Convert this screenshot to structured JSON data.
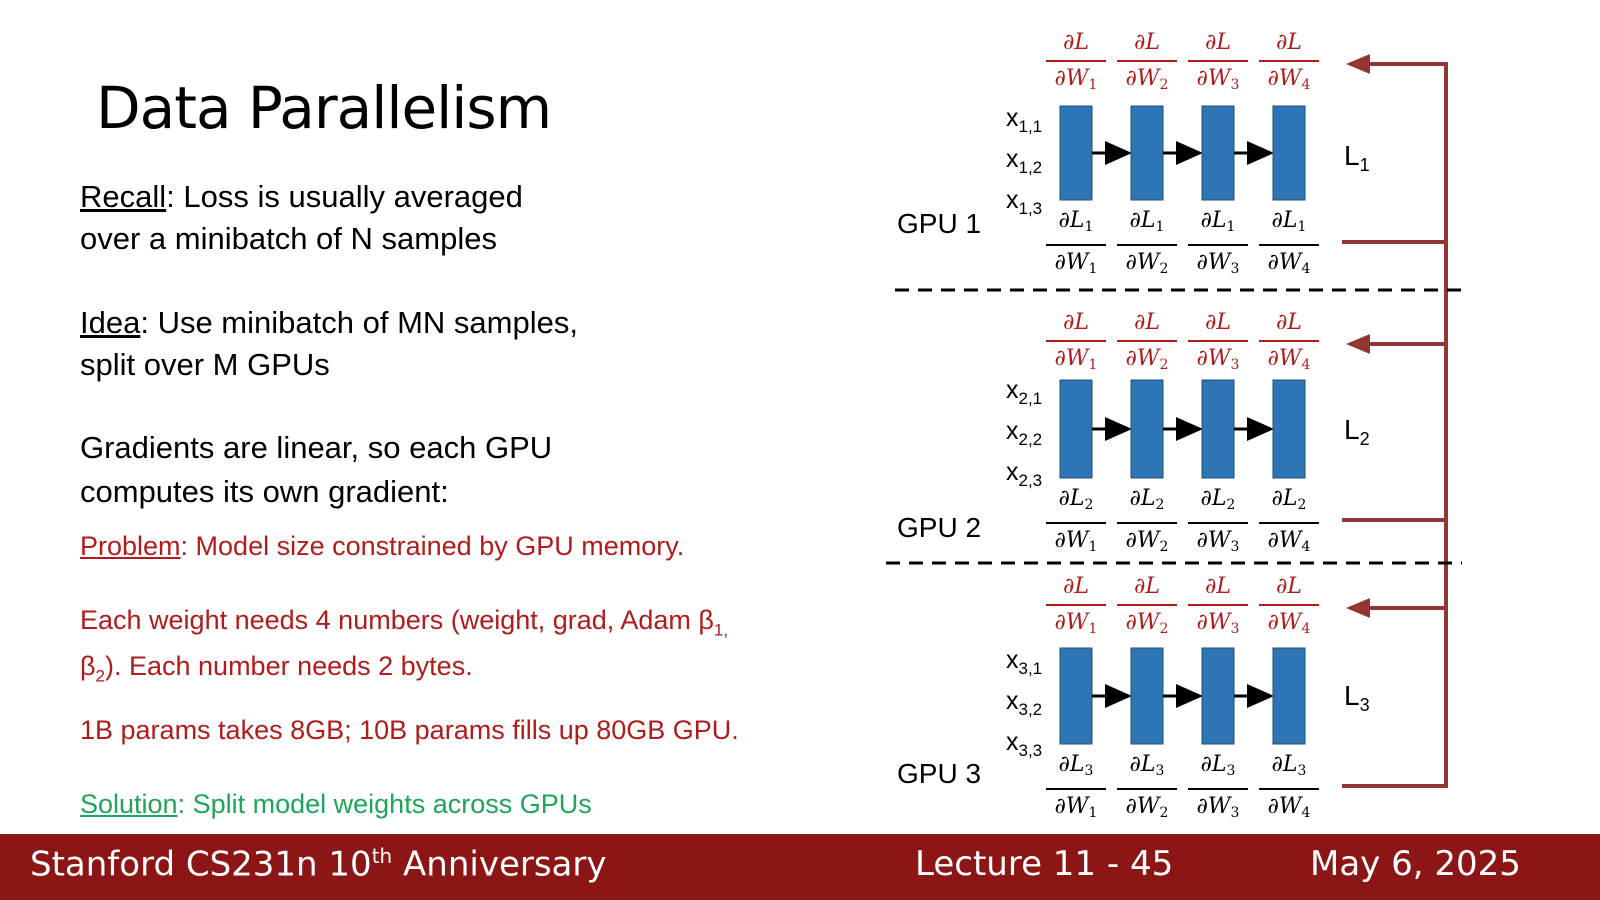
{
  "slide": {
    "title": "Data Parallelism",
    "recall_label": "Recall",
    "recall_text_1": ": Loss is usually averaged",
    "recall_text_2": "over a minibatch of N samples",
    "idea_label": "Idea",
    "idea_text_1": ": Use minibatch of MN samples,",
    "idea_text_2": "split over M GPUs",
    "gradients_text_1": "Gradients are linear, so each GPU",
    "gradients_text_2": "computes its own gradient:",
    "problem_label": "Problem",
    "problem_text": ": Model size constrained by GPU memory.",
    "weights_text_1": "Each weight needs 4 numbers (weight, grad, Adam β",
    "weights_beta1_sub": "1,",
    "weights_text_2_prefix": "β",
    "weights_beta2_sub": "2",
    "weights_text_2": "). Each number needs 2 bytes.",
    "params_text": "1B params takes 8GB; 10B params fills up 80GB GPU.",
    "solution_label": "Solution",
    "solution_text": ": Split model weights across GPUs"
  },
  "diagram": {
    "gpus": [
      {
        "label": "GPU 1",
        "x": [
          "1,1",
          "1,2",
          "1,3"
        ],
        "loss_sub": "1"
      },
      {
        "label": "GPU 2",
        "x": [
          "2,1",
          "2,2",
          "2,3"
        ],
        "loss_sub": "2"
      },
      {
        "label": "GPU 3",
        "x": [
          "3,1",
          "3,2",
          "3,3"
        ],
        "loss_sub": "3"
      }
    ],
    "x_symbol": "x",
    "loss_symbol": "L",
    "partial": "∂",
    "weight_symbol": "W",
    "weight_subs": [
      "1",
      "2",
      "3",
      "4"
    ],
    "block_color": "#2e75b6",
    "arrow_color": "#943634"
  },
  "footer": {
    "course": "Stanford CS231n 10",
    "course_sup": "th",
    "course_suffix": " Anniversary",
    "lecture": "Lecture 11 -  45",
    "date": "May 6, 2025"
  }
}
